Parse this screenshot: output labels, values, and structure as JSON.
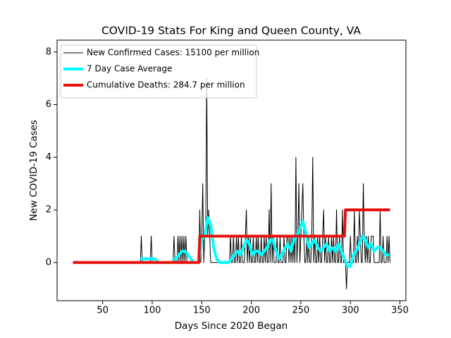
{
  "chart_data": {
    "type": "line",
    "title": "COVID-19 Stats For King and Queen County, VA",
    "x_label": "Days Since 2020 Began",
    "y_label": "New COVID-19 Cases",
    "xlim": [
      4,
      356
    ],
    "ylim": [
      -1.45,
      8.45
    ],
    "xticks": [
      50,
      100,
      150,
      200,
      250,
      300,
      350
    ],
    "yticks": [
      0,
      2,
      4,
      6,
      8
    ],
    "legend": "upper left",
    "series": [
      {
        "name": "New Confirmed Cases: 15100 per million",
        "color": "#000000",
        "width": 1,
        "x": [
          20,
          88,
          89,
          90,
          91,
          92,
          93,
          94,
          95,
          96,
          97,
          98,
          99,
          100,
          101,
          102,
          103,
          104,
          105,
          106,
          107,
          108,
          109,
          110,
          111,
          112,
          113,
          114,
          115,
          116,
          117,
          118,
          119,
          120,
          121,
          122,
          123,
          124,
          125,
          126,
          127,
          128,
          129,
          130,
          131,
          132,
          133,
          134,
          135,
          136,
          137,
          138,
          139,
          140,
          141,
          142,
          143,
          144,
          145,
          146,
          147,
          148,
          149,
          150,
          151,
          152,
          153,
          154,
          155,
          156,
          157,
          158,
          159,
          160,
          161,
          162,
          163,
          164,
          165,
          166,
          167,
          168,
          169,
          170,
          171,
          172,
          173,
          174,
          175,
          176,
          177,
          178,
          179,
          180,
          181,
          182,
          183,
          184,
          185,
          186,
          187,
          188,
          189,
          190,
          191,
          192,
          193,
          194,
          195,
          196,
          197,
          198,
          199,
          200,
          201,
          202,
          203,
          204,
          205,
          206,
          207,
          208,
          209,
          210,
          211,
          212,
          213,
          214,
          215,
          216,
          217,
          218,
          219,
          220,
          221,
          222,
          223,
          224,
          225,
          226,
          227,
          228,
          229,
          230,
          231,
          232,
          233,
          234,
          235,
          236,
          237,
          238,
          239,
          240,
          241,
          242,
          243,
          244,
          245,
          246,
          247,
          248,
          249,
          250,
          251,
          252,
          253,
          254,
          255,
          256,
          257,
          258,
          259,
          260,
          261,
          262,
          263,
          264,
          265,
          266,
          267,
          268,
          269,
          270,
          271,
          272,
          273,
          274,
          275,
          276,
          277,
          278,
          279,
          280,
          281,
          282,
          283,
          284,
          285,
          286,
          287,
          288,
          289,
          290,
          291,
          292,
          293,
          294,
          295,
          296,
          297,
          298,
          299,
          300,
          301,
          302,
          303,
          304,
          305,
          306,
          307,
          308,
          309,
          310,
          311,
          312,
          313,
          314,
          315,
          316,
          317,
          318,
          319,
          320,
          321,
          322,
          323,
          324,
          325,
          326,
          327,
          328,
          329,
          330,
          331,
          332,
          333,
          334,
          335,
          336,
          337,
          338,
          339,
          340
        ],
        "values": [
          0,
          0,
          1,
          0,
          0,
          0,
          0,
          0,
          0,
          0,
          0,
          0,
          1,
          0,
          0,
          0,
          0,
          0,
          0,
          0,
          0,
          0,
          0,
          0,
          0,
          0,
          0,
          0,
          0,
          0,
          0,
          0,
          0,
          0,
          0,
          1,
          0,
          0,
          0,
          1,
          0,
          1,
          0,
          1,
          0,
          1,
          0,
          1,
          0,
          0,
          0,
          0,
          0,
          0,
          0,
          0,
          0,
          0,
          0,
          0,
          0,
          2,
          0,
          1,
          3,
          0,
          1,
          1,
          7,
          1,
          2,
          1,
          0,
          0,
          0,
          0,
          0,
          0,
          0,
          0,
          0,
          0,
          0,
          0,
          0,
          0,
          0,
          0,
          0,
          0,
          0,
          0,
          1,
          0,
          0,
          1,
          0,
          0,
          1,
          0,
          1,
          0,
          0,
          1,
          0,
          0,
          0,
          1,
          2,
          0,
          1,
          0,
          1,
          0,
          0,
          1,
          0,
          0,
          1,
          0,
          1,
          0,
          0,
          1,
          0,
          0,
          1,
          0,
          1,
          0,
          0,
          2,
          0,
          3,
          0,
          1,
          0,
          0,
          0,
          1,
          0,
          0,
          1,
          0,
          0,
          0,
          1,
          0,
          0,
          1,
          1,
          0,
          1,
          0,
          1,
          0,
          1,
          0,
          4,
          0,
          1,
          3,
          0,
          1,
          2,
          3,
          1,
          0,
          0,
          1,
          0,
          1,
          0,
          0,
          1,
          4,
          0,
          1,
          0,
          0,
          1,
          0,
          1,
          0,
          0,
          1,
          2,
          0,
          1,
          0,
          0,
          1,
          0,
          0,
          1,
          0,
          1,
          0,
          0,
          2,
          0,
          0,
          1,
          0,
          0,
          2,
          0,
          0,
          0,
          -1,
          0,
          0,
          0,
          1,
          0,
          0,
          0,
          2,
          0,
          0,
          1,
          0,
          2,
          1,
          0,
          0,
          3,
          1,
          0,
          1,
          0,
          1,
          0,
          0,
          1,
          1,
          1,
          0,
          0,
          0,
          0,
          0,
          0,
          2,
          0,
          0,
          1,
          0,
          0,
          0,
          1,
          0,
          1,
          0
        ]
      },
      {
        "name": "7 Day Case Average",
        "color": "#00ffff",
        "width": 4,
        "x": [
          88,
          91,
          94,
          97,
          100,
          103,
          106,
          112,
          121,
          124,
          127,
          130,
          133,
          136,
          139,
          142,
          145,
          147,
          150,
          153,
          156,
          159,
          162,
          165,
          168,
          171,
          174,
          177,
          180,
          183,
          186,
          189,
          192,
          195,
          198,
          201,
          204,
          207,
          210,
          213,
          216,
          219,
          222,
          225,
          228,
          231,
          234,
          237,
          240,
          243,
          246,
          249,
          252,
          255,
          258,
          261,
          264,
          267,
          270,
          273,
          276,
          279,
          282,
          285,
          288,
          291,
          294,
          297,
          300,
          303,
          306,
          309,
          312,
          315,
          318,
          321,
          324,
          327,
          330,
          333,
          336,
          339
        ],
        "values": [
          0.14,
          0.14,
          0.14,
          0.14,
          0.14,
          0.14,
          0,
          null,
          0.14,
          0.14,
          0.29,
          0.43,
          0.43,
          0.29,
          0.14,
          0,
          null,
          0,
          0.86,
          1,
          1.71,
          1.43,
          0.57,
          0.14,
          0,
          0,
          0,
          0,
          0.14,
          0.29,
          0.43,
          0.29,
          0.57,
          0.86,
          0.71,
          0.29,
          0.43,
          0.43,
          0.29,
          0.43,
          0.57,
          0.86,
          0.86,
          0.43,
          0.14,
          0.29,
          0.57,
          0.71,
          0.43,
          0.86,
          1,
          1.29,
          1.57,
          1.14,
          0.57,
          0.71,
          0.86,
          0.57,
          0.43,
          0.57,
          0.71,
          0.43,
          0.57,
          0.43,
          0.71,
          0.43,
          0.14,
          -0.14,
          -0.14,
          0.29,
          0.43,
          0.71,
          1,
          0.86,
          0.57,
          0.71,
          0.43,
          0.57,
          0.57,
          0.43,
          0.29,
          0.29
        ]
      },
      {
        "name": "Cumulative Deaths: 284.7 per million",
        "color": "#e8100c",
        "width": 4,
        "x": [
          20,
          147,
          148,
          294,
          295,
          340
        ],
        "values": [
          0,
          0,
          1,
          1,
          2,
          2
        ]
      }
    ]
  }
}
